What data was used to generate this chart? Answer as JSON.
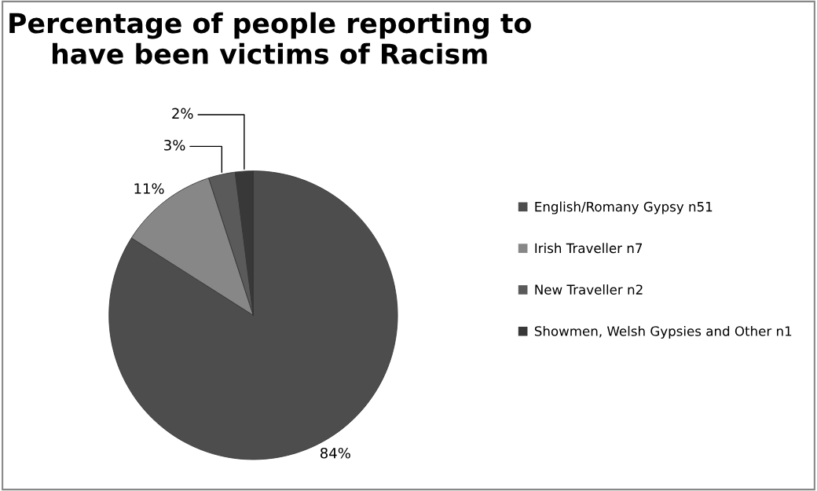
{
  "chart_data": {
    "type": "pie",
    "title": "Percentage of people reporting to have been victims of Racism",
    "categories": [
      "English/Romany Gypsy n51",
      "Irish Traveller n7",
      "New Traveller n2",
      "Showmen, Welsh Gypsies and Other n1"
    ],
    "values": [
      84,
      11,
      3,
      2
    ],
    "value_labels": [
      "84%",
      "11%",
      "3%",
      "2%"
    ],
    "colors": [
      "#4d4d4d",
      "#878787",
      "#5a5a5a",
      "#383838"
    ],
    "legend": "right"
  }
}
